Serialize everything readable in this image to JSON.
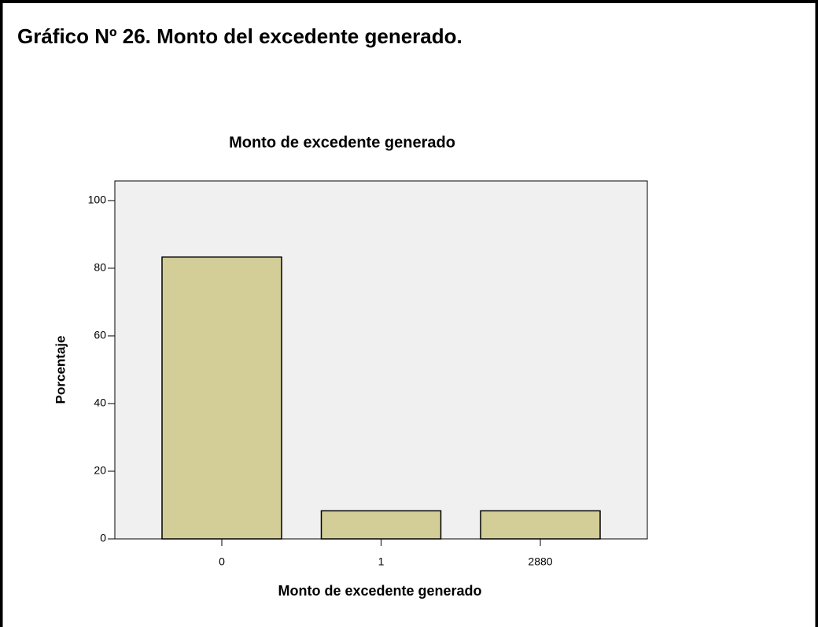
{
  "page_title": "Gráfico Nº 26. Monto del excedente generado.",
  "chart_data": {
    "type": "bar",
    "title": "Monto de excedente generado",
    "x_label": "Monto de excedente generado",
    "y_label": "Porcentaje",
    "categories": [
      "0",
      "1",
      "2880"
    ],
    "values": [
      83.3,
      8.3,
      8.3
    ],
    "color": "#d3ce98",
    "ylim": [
      0,
      105.8
    ],
    "yticks": [
      0,
      20,
      40,
      60,
      80,
      100
    ],
    "grid": false
  }
}
